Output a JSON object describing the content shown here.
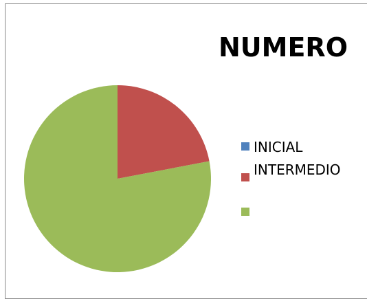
{
  "chart_data": {
    "type": "pie",
    "title": "NUMERO",
    "categories": [
      "INICIAL",
      "INTERMEDIO",
      ""
    ],
    "values": [
      0,
      22,
      78
    ],
    "colors": [
      "#4f81bd",
      "#c0504d",
      "#9bbb59"
    ],
    "legend_position": "right"
  }
}
